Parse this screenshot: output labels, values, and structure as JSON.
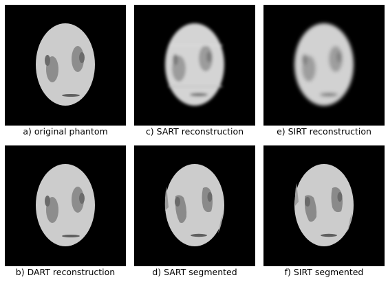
{
  "figure": {
    "panels": [
      {
        "id": "a",
        "caption": "a) original phantom",
        "style": "original"
      },
      {
        "id": "c",
        "caption": "c) SART reconstruction",
        "style": "blurred"
      },
      {
        "id": "e",
        "caption": "e) SIRT reconstruction",
        "style": "blurred"
      },
      {
        "id": "b",
        "caption": "b) DART reconstruction",
        "style": "original"
      },
      {
        "id": "d",
        "caption": "d) SART segmented",
        "style": "segmented"
      },
      {
        "id": "f",
        "caption": "f) SIRT segmented",
        "style": "segmented"
      }
    ]
  },
  "colors": {
    "background": "#000000",
    "head": "#cccccc",
    "eye_region": "#8a8a8a",
    "pupil": "#6a6a6a",
    "mouth": "#5a5a5a"
  }
}
